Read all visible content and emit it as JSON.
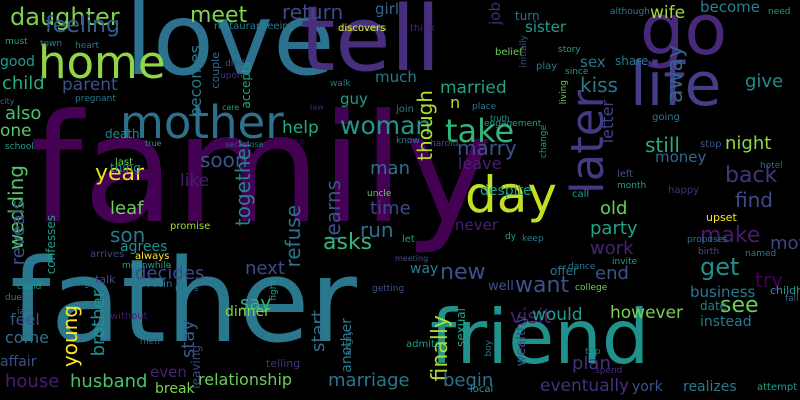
{
  "words": [
    {
      "text": "family",
      "color": "#440154"
    },
    {
      "text": "father",
      "color": "#2a788e"
    },
    {
      "text": "love",
      "color": "#2c728e"
    },
    {
      "text": "tell",
      "color": "#472f7d"
    },
    {
      "text": "go",
      "color": "#482878"
    },
    {
      "text": "friend",
      "color": "#21918c"
    },
    {
      "text": "life",
      "color": "#433e85"
    },
    {
      "text": "home",
      "color": "#8fd744"
    },
    {
      "text": "mother",
      "color": "#2d708e"
    },
    {
      "text": "day",
      "color": "#c2df23"
    },
    {
      "text": "later",
      "color": "#443983"
    },
    {
      "text": "daughter",
      "color": "#7ad151"
    },
    {
      "text": "take",
      "color": "#31b57b"
    },
    {
      "text": "woman",
      "color": "#1f988b"
    },
    {
      "text": "meet",
      "color": "#7fd34e"
    },
    {
      "text": "return",
      "color": "#3e4a89"
    },
    {
      "text": "feeling",
      "color": "#375b8d"
    },
    {
      "text": "child",
      "color": "#26ad81"
    },
    {
      "text": "parent",
      "color": "#3b528b"
    },
    {
      "text": "also",
      "color": "#4ac16d"
    },
    {
      "text": "one",
      "color": "#5ec962"
    },
    {
      "text": "death",
      "color": "#218f8d"
    },
    {
      "text": "help",
      "color": "#26ad81"
    },
    {
      "text": "year",
      "color": "#e2e418"
    },
    {
      "text": "thing",
      "color": "#21918c"
    },
    {
      "text": "like",
      "color": "#481f70"
    },
    {
      "text": "soon",
      "color": "#3b528b"
    },
    {
      "text": "wedding",
      "color": "#52c569"
    },
    {
      "text": "leaf",
      "color": "#6ccd5a"
    },
    {
      "text": "son",
      "color": "#2a788e"
    },
    {
      "text": "agrees",
      "color": "#218f8d"
    },
    {
      "text": "always",
      "color": "#fde725"
    },
    {
      "text": "promise",
      "color": "#a0da39"
    },
    {
      "text": "decides",
      "color": "#3e4a89"
    },
    {
      "text": "reveals",
      "color": "#3b528b"
    },
    {
      "text": "confesses",
      "color": "#1f9e89"
    },
    {
      "text": "becomes",
      "color": "#2a788e"
    },
    {
      "text": "couple",
      "color": "#31688e"
    },
    {
      "text": "accepts",
      "color": "#20a486"
    },
    {
      "text": "together",
      "color": "#26828e"
    },
    {
      "text": "refuse",
      "color": "#2c728e"
    },
    {
      "text": "learns",
      "color": "#3b528b"
    },
    {
      "text": "run",
      "color": "#2d708e"
    },
    {
      "text": "asks",
      "color": "#35b779"
    },
    {
      "text": "new",
      "color": "#3b528b"
    },
    {
      "text": "man",
      "color": "#2c728e"
    },
    {
      "text": "time",
      "color": "#3e4a89"
    },
    {
      "text": "guy",
      "color": "#1f9e89"
    },
    {
      "text": "much",
      "color": "#2a788e"
    },
    {
      "text": "marry",
      "color": "#3b528b"
    },
    {
      "text": "married",
      "color": "#20a386"
    },
    {
      "text": "leave",
      "color": "#481f70"
    },
    {
      "text": "never",
      "color": "#481f70"
    },
    {
      "text": "despite",
      "color": "#1fa188"
    },
    {
      "text": "want",
      "color": "#3b528b"
    },
    {
      "text": "visit",
      "color": "#481f70"
    },
    {
      "text": "party",
      "color": "#20a486"
    },
    {
      "text": "old",
      "color": "#6ccd5a"
    },
    {
      "text": "work",
      "color": "#482475"
    },
    {
      "text": "make",
      "color": "#481b6d"
    },
    {
      "text": "get",
      "color": "#21918c"
    },
    {
      "text": "back",
      "color": "#46337e"
    },
    {
      "text": "find",
      "color": "#3e4a89"
    },
    {
      "text": "see",
      "color": "#6ccd5a"
    },
    {
      "text": "move",
      "color": "#414487"
    },
    {
      "text": "end",
      "color": "#3b528b"
    },
    {
      "text": "try",
      "color": "#440154"
    },
    {
      "text": "business",
      "color": "#2a788e"
    },
    {
      "text": "however",
      "color": "#7ad151"
    },
    {
      "text": "though",
      "color": "#b5de2b"
    },
    {
      "text": "sex",
      "color": "#2c728e"
    },
    {
      "text": "wife",
      "color": "#a0da39"
    },
    {
      "text": "sister",
      "color": "#1f9e89"
    },
    {
      "text": "away",
      "color": "#33638d"
    },
    {
      "text": "kiss",
      "color": "#2a788e"
    },
    {
      "text": "letter",
      "color": "#414487"
    },
    {
      "text": "still",
      "color": "#25ab82"
    },
    {
      "text": "night",
      "color": "#90d743"
    },
    {
      "text": "money",
      "color": "#31688e"
    },
    {
      "text": "become",
      "color": "#26828e"
    },
    {
      "text": "give",
      "color": "#228d8d"
    },
    {
      "text": "share",
      "color": "#2a788e"
    },
    {
      "text": "girl",
      "color": "#31688e"
    },
    {
      "text": "job",
      "color": "#482878"
    },
    {
      "text": "turn",
      "color": "#2d708e"
    },
    {
      "text": "n",
      "color": "#b5de2b"
    },
    {
      "text": "next",
      "color": "#3e4a89"
    },
    {
      "text": "say",
      "color": "#32b67a"
    },
    {
      "text": "stay",
      "color": "#375b8d"
    },
    {
      "text": "start",
      "color": "#2d708e"
    },
    {
      "text": "young",
      "color": "#fde725"
    },
    {
      "text": "brother",
      "color": "#21918c"
    },
    {
      "text": "dinner",
      "color": "#84d44b"
    },
    {
      "text": "leaving",
      "color": "#414487"
    },
    {
      "text": "finally",
      "color": "#a8db34"
    },
    {
      "text": "another",
      "color": "#2a788e"
    },
    {
      "text": "would",
      "color": "#1f9e89"
    },
    {
      "text": "offer",
      "color": "#2a788e"
    },
    {
      "text": "way",
      "color": "#277f8e"
    },
    {
      "text": "well",
      "color": "#3b528b"
    },
    {
      "text": "instead",
      "color": "#2a788e"
    },
    {
      "text": "date",
      "color": "#26828e"
    },
    {
      "text": "plan",
      "color": "#472f7d"
    },
    {
      "text": "feel",
      "color": "#3b528b"
    },
    {
      "text": "come",
      "color": "#2d708e"
    },
    {
      "text": "affair",
      "color": "#3b528b"
    },
    {
      "text": "house",
      "color": "#481f70"
    },
    {
      "text": "husband",
      "color": "#4ac16d"
    },
    {
      "text": "even",
      "color": "#482475"
    },
    {
      "text": "relationship",
      "color": "#6ccd5a"
    },
    {
      "text": "marriage",
      "color": "#2a788e"
    },
    {
      "text": "begin",
      "color": "#2d708e"
    },
    {
      "text": "eventually",
      "color": "#472f7d"
    },
    {
      "text": "york",
      "color": "#3b528b"
    },
    {
      "text": "realizes",
      "color": "#2a788e"
    },
    {
      "text": "break",
      "color": "#7ad151"
    },
    {
      "text": "wealthy",
      "color": "#3b528b"
    },
    {
      "text": "attempt",
      "color": "#1f9e89"
    },
    {
      "text": "sexual",
      "color": "#20a486"
    },
    {
      "text": "telling",
      "color": "#46337e"
    },
    {
      "text": "without",
      "color": "#48186a"
    },
    {
      "text": "talk",
      "color": "#3e4a89"
    },
    {
      "text": "cousin",
      "color": "#2a788e"
    },
    {
      "text": "arrives",
      "color": "#414487"
    },
    {
      "text": "meanwhile",
      "color": "#1f9e89"
    },
    {
      "text": "restaurant",
      "color": "#26828e"
    },
    {
      "text": "seeing",
      "color": "#2a788e"
    },
    {
      "text": "confronts",
      "color": "#31688e"
    },
    {
      "text": "discovers",
      "color": "#fde725"
    },
    {
      "text": "think",
      "color": "#482475"
    },
    {
      "text": "belief",
      "color": "#6ccd5a"
    },
    {
      "text": "play",
      "color": "#2a788e"
    },
    {
      "text": "story",
      "color": "#20a486"
    },
    {
      "text": "since",
      "color": "#1f9e89"
    },
    {
      "text": "although",
      "color": "#2a788e"
    },
    {
      "text": "need",
      "color": "#1f9e89"
    },
    {
      "text": "going",
      "color": "#2a788e"
    },
    {
      "text": "stop",
      "color": "#3b528b"
    },
    {
      "text": "hotel",
      "color": "#31688e"
    },
    {
      "text": "month",
      "color": "#1f9e89"
    },
    {
      "text": "happy",
      "color": "#472f7d"
    },
    {
      "text": "left",
      "color": "#3b528b"
    },
    {
      "text": "call",
      "color": "#1f9e89"
    },
    {
      "text": "upset",
      "color": "#fde725"
    },
    {
      "text": "named",
      "color": "#2a788e"
    },
    {
      "text": "proposes",
      "color": "#2a788e"
    },
    {
      "text": "birth",
      "color": "#3b528b"
    },
    {
      "text": "invite",
      "color": "#1f9e89"
    },
    {
      "text": "dance",
      "color": "#2a788e"
    },
    {
      "text": "college",
      "color": "#6ccd5a"
    },
    {
      "text": "childhood",
      "color": "#1f9e89"
    },
    {
      "text": "fall",
      "color": "#31688e"
    },
    {
      "text": "dy",
      "color": "#1f9e89"
    },
    {
      "text": "keep",
      "color": "#2a788e"
    },
    {
      "text": "let",
      "color": "#1f9e89"
    },
    {
      "text": "uncle",
      "color": "#6ccd5a"
    },
    {
      "text": "getting",
      "color": "#3b528b"
    },
    {
      "text": "admits",
      "color": "#1f9e89"
    },
    {
      "text": "spend",
      "color": "#472f7d"
    },
    {
      "text": "trip",
      "color": "#2a788e"
    },
    {
      "text": "local",
      "color": "#1f9e89"
    },
    {
      "text": "boy",
      "color": "#2a788e"
    },
    {
      "text": "must",
      "color": "#1f9e89"
    },
    {
      "text": "town",
      "color": "#26828e"
    },
    {
      "text": "heart",
      "color": "#2a788e"
    },
    {
      "text": "good",
      "color": "#1f9e89"
    },
    {
      "text": "city",
      "color": "#31688e"
    },
    {
      "text": "pregnant",
      "color": "#2a788e"
    },
    {
      "text": "upon",
      "color": "#472f7d"
    },
    {
      "text": "died",
      "color": "#3b528b"
    },
    {
      "text": "care",
      "color": "#1f9e89"
    },
    {
      "text": "close",
      "color": "#2a788e"
    },
    {
      "text": "secret",
      "color": "#3b528b"
    },
    {
      "text": "alone",
      "color": "#440154"
    },
    {
      "text": "true",
      "color": "#1f9e89"
    },
    {
      "text": "last",
      "color": "#6ccd5a"
    },
    {
      "text": "walk",
      "color": "#2a788e"
    },
    {
      "text": "law",
      "color": "#482475"
    },
    {
      "text": "join",
      "color": "#2a788e"
    },
    {
      "text": "engagement",
      "color": "#1f9e89"
    },
    {
      "text": "know",
      "color": "#2a788e"
    },
    {
      "text": "harold",
      "color": "#3b528b"
    },
    {
      "text": "change",
      "color": "#1f9e89"
    },
    {
      "text": "place",
      "color": "#2a788e"
    },
    {
      "text": "living",
      "color": "#6ccd5a"
    },
    {
      "text": "initially",
      "color": "#3b528b"
    },
    {
      "text": "school",
      "color": "#1f9e89"
    },
    {
      "text": "due",
      "color": "#2a788e"
    },
    {
      "text": "ian",
      "color": "#31688e"
    },
    {
      "text": "could",
      "color": "#1f9e89"
    },
    {
      "text": "long",
      "color": "#2a788e"
    },
    {
      "text": "men",
      "color": "#3b528b"
    },
    {
      "text": "news",
      "color": "#2a788e"
    },
    {
      "text": "fight",
      "color": "#1f9e89"
    },
    {
      "text": "angry",
      "color": "#2a788e"
    },
    {
      "text": "meeting",
      "color": "#3b528b"
    },
    {
      "text": "truth",
      "color": "#1f9e89"
    }
  ]
}
